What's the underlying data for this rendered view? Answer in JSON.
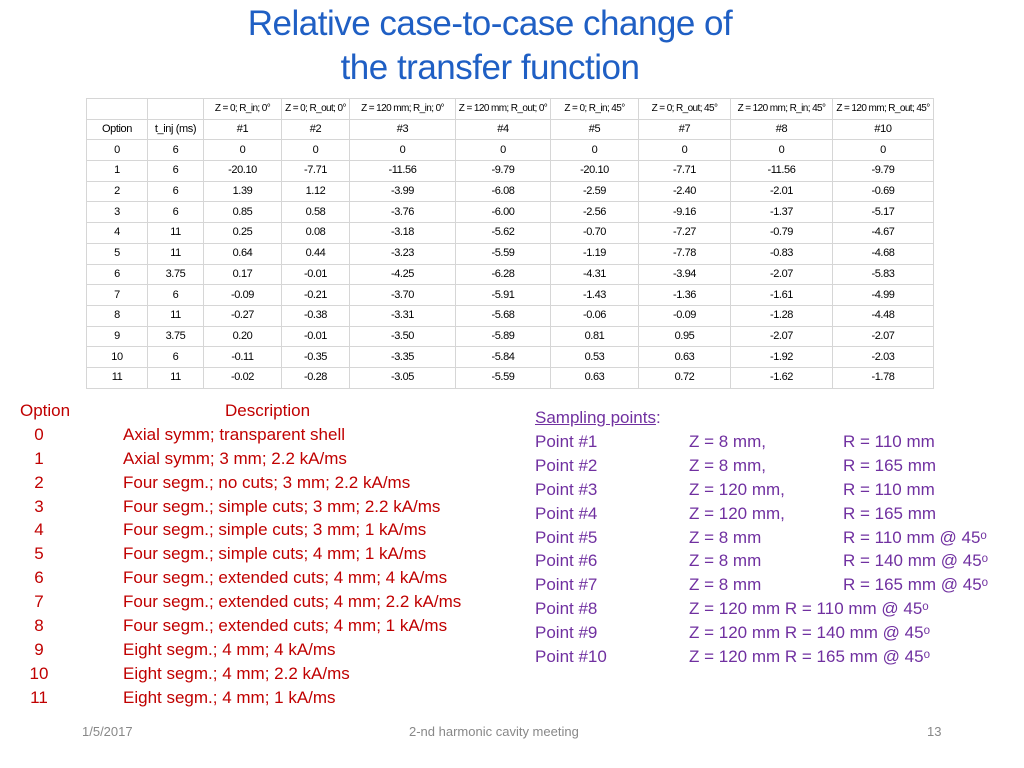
{
  "title": {
    "line1": "Relative case-to-case change of",
    "line2": "the transfer function"
  },
  "table": {
    "header_conditions": [
      "",
      "",
      "Z = 0; R_in; 0°",
      "Z = 0; R_out; 0°",
      "Z = 120 mm; R_in; 0°",
      "Z = 120 mm; R_out; 0°",
      "Z = 0; R_in; 45°",
      "Z = 0; R_out; 45°",
      "Z = 120 mm; R_in; 45°",
      "Z = 120 mm; R_out; 45°"
    ],
    "header_labels": [
      "Option",
      "t_inj (ms)",
      "#1",
      "#2",
      "#3",
      "#4",
      "#5",
      "#7",
      "#8",
      "#10"
    ],
    "rows": [
      [
        "0",
        "6",
        "0",
        "0",
        "0",
        "0",
        "0",
        "0",
        "0",
        "0"
      ],
      [
        "1",
        "6",
        "-20.10",
        "-7.71",
        "-11.56",
        "-9.79",
        "-20.10",
        "-7.71",
        "-11.56",
        "-9.79"
      ],
      [
        "2",
        "6",
        "1.39",
        "1.12",
        "-3.99",
        "-6.08",
        "-2.59",
        "-2.40",
        "-2.01",
        "-0.69"
      ],
      [
        "3",
        "6",
        "0.85",
        "0.58",
        "-3.76",
        "-6.00",
        "-2.56",
        "-9.16",
        "-1.37",
        "-5.17"
      ],
      [
        "4",
        "11",
        "0.25",
        "0.08",
        "-3.18",
        "-5.62",
        "-0.70",
        "-7.27",
        "-0.79",
        "-4.67"
      ],
      [
        "5",
        "11",
        "0.64",
        "0.44",
        "-3.23",
        "-5.59",
        "-1.19",
        "-7.78",
        "-0.83",
        "-4.68"
      ],
      [
        "6",
        "3.75",
        "0.17",
        "-0.01",
        "-4.25",
        "-6.28",
        "-4.31",
        "-3.94",
        "-2.07",
        "-5.83"
      ],
      [
        "7",
        "6",
        "-0.09",
        "-0.21",
        "-3.70",
        "-5.91",
        "-1.43",
        "-1.36",
        "-1.61",
        "-4.99"
      ],
      [
        "8",
        "11",
        "-0.27",
        "-0.38",
        "-3.31",
        "-5.68",
        "-0.06",
        "-0.09",
        "-1.28",
        "-4.48"
      ],
      [
        "9",
        "3.75",
        "0.20",
        "-0.01",
        "-3.50",
        "-5.89",
        "0.81",
        "0.95",
        "-2.07",
        "-2.07"
      ],
      [
        "10",
        "6",
        "-0.11",
        "-0.35",
        "-3.35",
        "-5.84",
        "0.53",
        "0.63",
        "-1.92",
        "-2.03"
      ],
      [
        "11",
        "11",
        "-0.02",
        "-0.28",
        "-3.05",
        "-5.59",
        "0.63",
        "0.72",
        "-1.62",
        "-1.78"
      ]
    ]
  },
  "options": {
    "header_option": "Option",
    "header_description": "Description",
    "items": [
      {
        "num": "0",
        "desc": "Axial symm; transparent shell"
      },
      {
        "num": "1",
        "desc": "Axial symm; 3 mm; 2.2 kA/ms"
      },
      {
        "num": "2",
        "desc": "Four segm.; no cuts; 3 mm; 2.2 kA/ms"
      },
      {
        "num": "3",
        "desc": "Four segm.; simple cuts; 3 mm; 2.2 kA/ms"
      },
      {
        "num": "4",
        "desc": "Four segm.; simple cuts; 3 mm; 1 kA/ms"
      },
      {
        "num": "5",
        "desc": "Four segm.; simple cuts; 4 mm; 1 kA/ms"
      },
      {
        "num": "6",
        "desc": "Four segm.; extended cuts; 4 mm; 4 kA/ms"
      },
      {
        "num": "7",
        "desc": "Four segm.; extended cuts; 4 mm; 2.2 kA/ms"
      },
      {
        "num": "8",
        "desc": "Four segm.; extended cuts; 4 mm; 1 kA/ms"
      },
      {
        "num": "9",
        "desc": "Eight segm.; 4 mm; 4 kA/ms"
      },
      {
        "num": "10",
        "desc": "Eight segm.; 4 mm; 2.2 kA/ms"
      },
      {
        "num": "11",
        "desc": "Eight segm.; 4 mm; 1 kA/ms"
      }
    ]
  },
  "sampling": {
    "heading": "Sampling points",
    "colon": ":",
    "points": [
      {
        "name": "Point #1",
        "z": "Z = 8 mm,",
        "r": "R = 110 mm"
      },
      {
        "name": "Point #2",
        "z": "Z = 8 mm,",
        "r": "R = 165 mm"
      },
      {
        "name": "Point #3",
        "z": "Z = 120 mm,",
        "r": "R = 110 mm"
      },
      {
        "name": "Point #4",
        "z": "Z = 120 mm,",
        "r": "R = 165 mm"
      },
      {
        "name": "Point #5",
        "z": "Z = 8 mm",
        "r": "R = 110 mm @ 45ᵒ"
      },
      {
        "name": "Point #6",
        "z": "Z = 8 mm",
        "r": "R = 140 mm @ 45ᵒ"
      },
      {
        "name": "Point #7",
        "z": "Z = 8 mm",
        "r": "R = 165 mm @ 45ᵒ"
      }
    ],
    "points_combined": [
      {
        "name": "Point #8",
        "zr": "Z = 120 mm  R = 110 mm @ 45ᵒ"
      },
      {
        "name": "Point #9",
        "zr": "Z = 120 mm  R = 140 mm @ 45ᵒ"
      },
      {
        "name": "Point #10",
        "zr": "Z = 120 mm  R = 165 mm @ 45ᵒ"
      }
    ]
  },
  "footer": {
    "date": "1/5/2017",
    "center": "2-nd harmonic cavity meeting",
    "page": "13"
  },
  "colors": {
    "title": "#1f5fc4",
    "options_text": "#c00000",
    "sampling_text": "#7030a0",
    "footer_text": "#888888",
    "table_border": "#d6d6d6"
  }
}
